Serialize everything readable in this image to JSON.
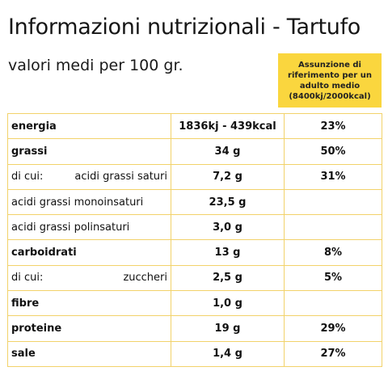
{
  "header": {
    "title": "Informazioni nutrizionali - Tartufo",
    "subtitle": "valori medi per 100 gr."
  },
  "reference_box": {
    "lines": [
      "Assunzione di",
      "riferimento per un",
      "adulto medio",
      "(8400kj/2000kcal)"
    ],
    "color": "#fad63e"
  },
  "table": {
    "border_color": "#f2d26a",
    "rows": [
      {
        "label": "energia",
        "prefix": "",
        "value": "1836kj - 439kcal",
        "percent": "23%"
      },
      {
        "label": "grassi",
        "prefix": "",
        "value": "34 g",
        "percent": "50%"
      },
      {
        "label": "acidi grassi saturi",
        "prefix": "di cui:",
        "value": "7,2 g",
        "percent": "31%"
      },
      {
        "label": "acidi grassi monoinsaturi",
        "prefix": "",
        "value": "23,5 g",
        "percent": ""
      },
      {
        "label": "acidi grassi polinsaturi",
        "prefix": "",
        "value": "3,0 g",
        "percent": ""
      },
      {
        "label": "carboidrati",
        "prefix": "",
        "value": "13 g",
        "percent": "8%"
      },
      {
        "label": "zuccheri",
        "prefix": "di cui:",
        "value": "2,5 g",
        "percent": "5%"
      },
      {
        "label": "fibre",
        "prefix": "",
        "value": "1,0 g",
        "percent": ""
      },
      {
        "label": "proteine",
        "prefix": "",
        "value": "19 g",
        "percent": "29%"
      },
      {
        "label": "sale",
        "prefix": "",
        "value": "1,4 g",
        "percent": "27%"
      }
    ]
  }
}
